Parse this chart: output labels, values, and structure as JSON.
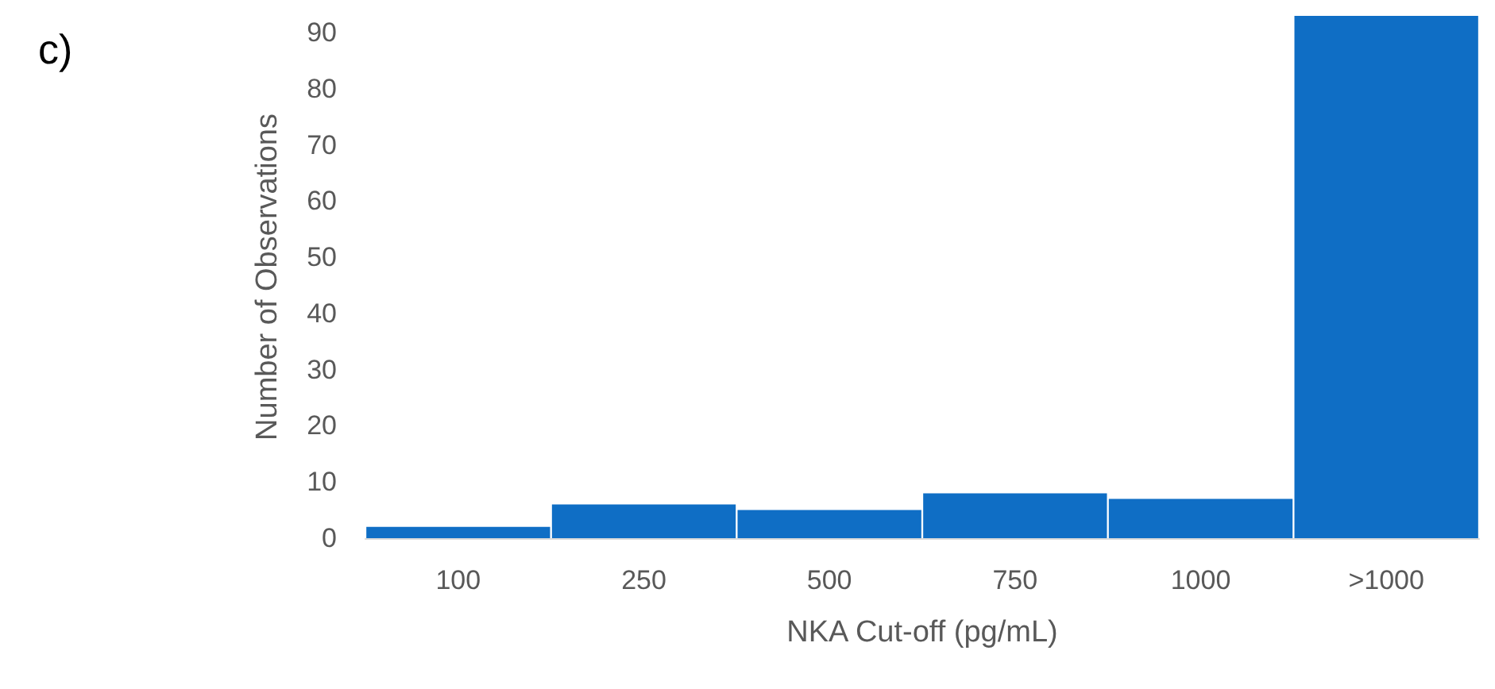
{
  "chart_data": {
    "type": "bar",
    "categories": [
      "100",
      "250",
      "500",
      "750",
      "1000",
      ">1000"
    ],
    "values": [
      2,
      6,
      5,
      8,
      7,
      93
    ],
    "color": "#0f6ec5",
    "xlabel": "NKA Cut-off (pg/mL)",
    "ylabel": "Number of Observations",
    "ylim": [
      0,
      93
    ],
    "yticks": [
      0,
      10,
      20,
      30,
      40,
      50,
      60,
      70,
      80,
      90
    ],
    "grid": false,
    "annotations": [
      "c)"
    ]
  }
}
